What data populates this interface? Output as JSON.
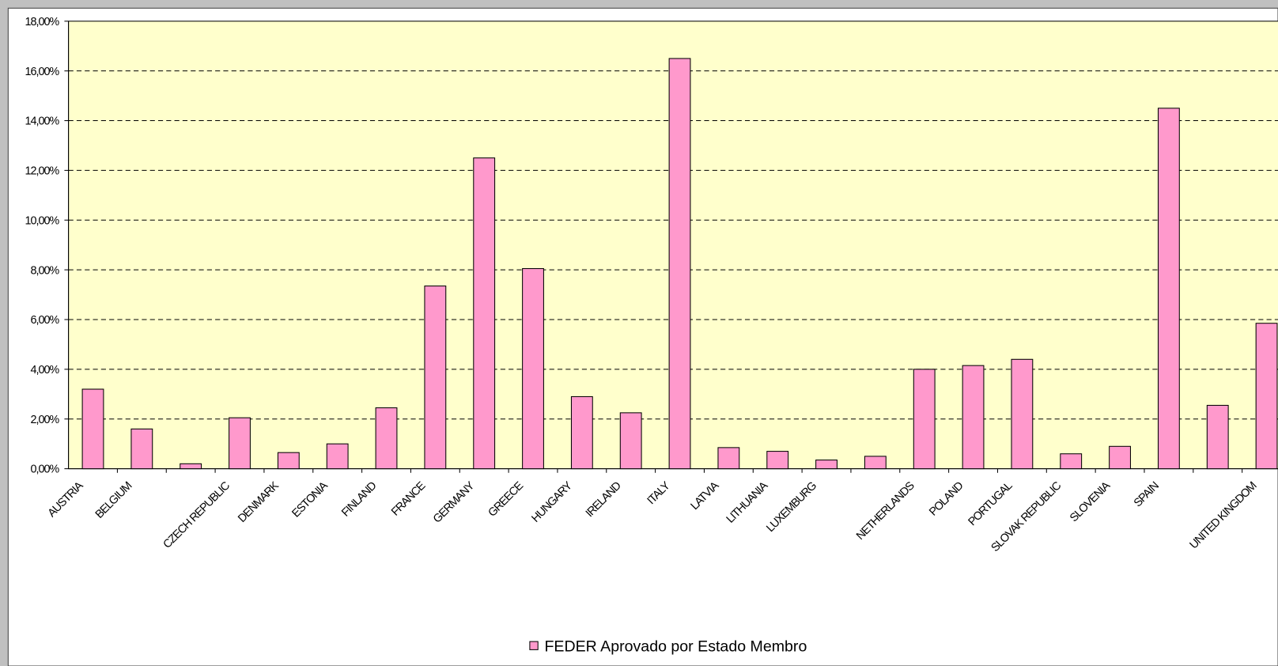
{
  "chart_data": {
    "type": "bar",
    "categories": [
      "AUSTRIA",
      "BELGIUM",
      null,
      "CZECH REPUBLIC",
      "DENMARK",
      "ESTONIA",
      "FINLAND",
      "FRANCE",
      "GERMANY",
      "GREECE",
      "HUNGARY",
      "IRELAND",
      "ITALY",
      "LATVIA",
      "LITHUANIA",
      "LUXEMBURG",
      null,
      "NETHERLANDS",
      "POLAND",
      "PORTUGAL",
      "SLOVAK REPUBLIC",
      "SLOVENIA",
      "SPAIN",
      null,
      "UNITED KINGDOM"
    ],
    "series": [
      {
        "name": "FEDER Aprovado por Estado Membro",
        "color": "#ff99cc",
        "values": [
          3.2,
          1.6,
          0.2,
          2.05,
          0.65,
          1.0,
          2.45,
          7.35,
          12.5,
          8.05,
          2.9,
          2.25,
          16.5,
          0.85,
          0.7,
          0.35,
          0.5,
          4.0,
          4.15,
          4.4,
          0.6,
          0.9,
          14.5,
          2.55,
          5.85
        ]
      }
    ],
    "ylim": [
      0,
      18
    ],
    "yticks": [
      {
        "value": 0,
        "label": "0,00%"
      },
      {
        "value": 2,
        "label": "2,00%"
      },
      {
        "value": 4,
        "label": "4,00%"
      },
      {
        "value": 6,
        "label": "6,00%"
      },
      {
        "value": 8,
        "label": "8,00%"
      },
      {
        "value": 10,
        "label": "10,00%"
      },
      {
        "value": 12,
        "label": "12,00%"
      },
      {
        "value": 14,
        "label": "14,00%"
      },
      {
        "value": 16,
        "label": "16,00%"
      },
      {
        "value": 18,
        "label": "18,00%"
      }
    ],
    "grid": true,
    "legend": "bottom",
    "plot_background": "#ffffcc"
  }
}
